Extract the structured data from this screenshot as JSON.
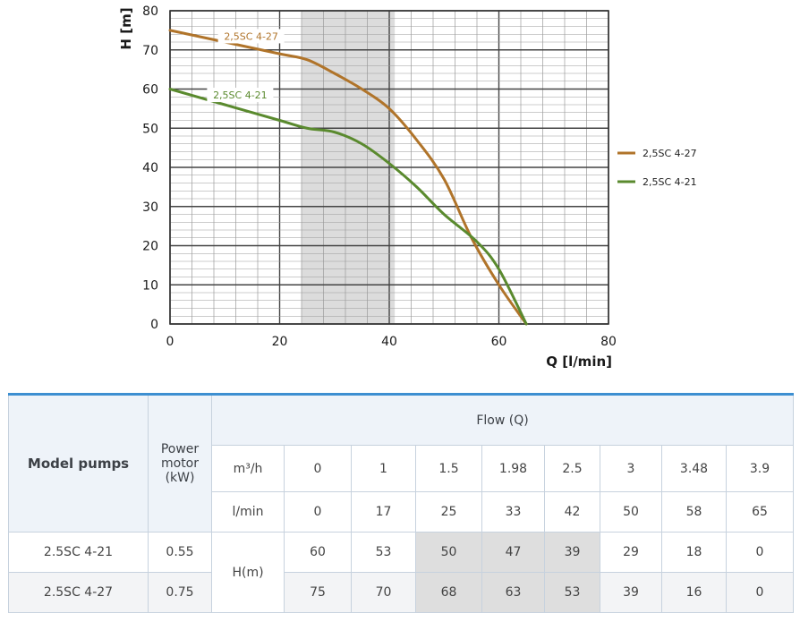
{
  "chart_data": {
    "type": "line",
    "xlabel": "Q [l/min]",
    "ylabel": "H [m]",
    "xlim": [
      0,
      80
    ],
    "ylim": [
      0,
      80
    ],
    "x_ticks": [
      "0",
      "20",
      "40",
      "60",
      "80"
    ],
    "y_ticks": [
      "0",
      "10",
      "20",
      "30",
      "40",
      "50",
      "60",
      "70",
      "80"
    ],
    "grid": true,
    "legend_position": "right",
    "highlight_band": [
      24,
      41
    ],
    "series": [
      {
        "name": "2,5SC 4-27",
        "color": "#b0742a",
        "x": [
          0,
          10,
          20,
          25,
          30,
          35,
          40,
          45,
          50,
          55,
          60,
          65
        ],
        "y": [
          75,
          72,
          69,
          67.5,
          64,
          60,
          55,
          47,
          37,
          22,
          10,
          0
        ]
      },
      {
        "name": "2,5SC 4-21",
        "color": "#5a8a2e",
        "x": [
          0,
          10,
          20,
          25,
          30,
          35,
          40,
          45,
          50,
          56,
          60,
          65
        ],
        "y": [
          60,
          56,
          52,
          50,
          49,
          46,
          41,
          35,
          28,
          21,
          14,
          0
        ]
      }
    ]
  },
  "table": {
    "model_header": "Model pumps",
    "power_header": "Power motor (kW)",
    "flow_header": "Flow (Q)",
    "unit_m3h": "m³/h",
    "unit_lmin": "l/min",
    "head_label": "H(m)",
    "m3h_values": [
      "0",
      "1",
      "1.5",
      "1.98",
      "2.5",
      "3",
      "3.48",
      "3.9"
    ],
    "lmin_values": [
      "0",
      "17",
      "25",
      "33",
      "42",
      "50",
      "58",
      "65"
    ],
    "rows": [
      {
        "model": "2.5SC 4-21",
        "power": "0.55",
        "heads": [
          "60",
          "53",
          "50",
          "47",
          "39",
          "29",
          "18",
          "0"
        ]
      },
      {
        "model": "2.5SC 4-27",
        "power": "0.75",
        "heads": [
          "75",
          "70",
          "68",
          "63",
          "53",
          "39",
          "16",
          "0"
        ]
      }
    ]
  }
}
